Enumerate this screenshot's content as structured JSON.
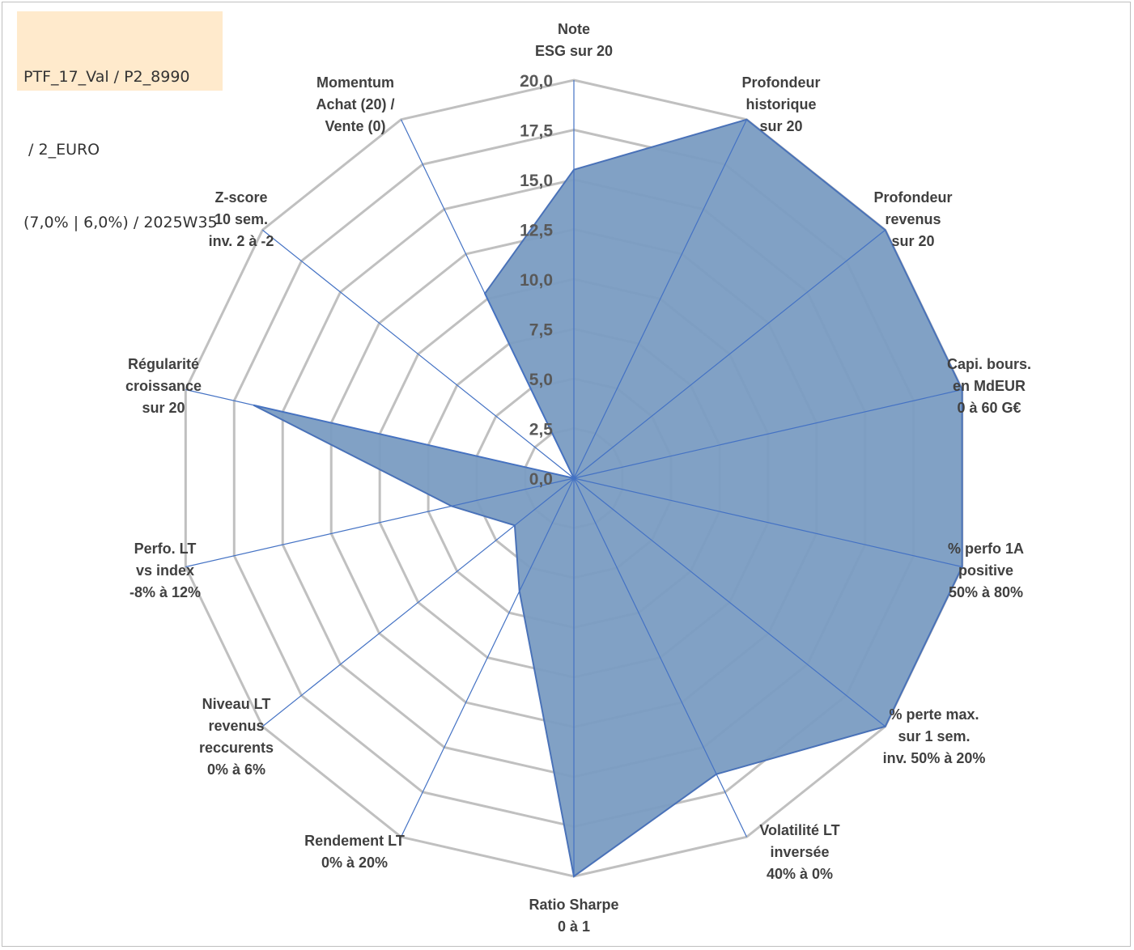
{
  "legend": {
    "lines": [
      "PTF_17_Val / P2_8990",
      " / 2_EURO",
      "(7,0% | 6,0%) / 2025W35"
    ]
  },
  "colors": {
    "grid": "#c0c0c0",
    "spoke": "#4472c4",
    "fill": "#7a9cc2",
    "stroke": "#4a72b8",
    "legend_bg": "#ffeacc"
  },
  "chart_data": {
    "type": "radar",
    "title": "",
    "rlim": [
      0,
      20
    ],
    "grid": true,
    "tick_labels": [
      "0,0",
      "2,5",
      "5,0",
      "7,5",
      "10,0",
      "12,5",
      "15,0",
      "17,5",
      "20,0"
    ],
    "categories": [
      [
        "Note",
        "ESG sur 20"
      ],
      [
        "Profondeur",
        "historique",
        "sur 20"
      ],
      [
        "Profondeur",
        "revenus",
        "sur 20"
      ],
      [
        "Capi. bours.",
        "en MdEUR",
        "0 à 60 G€"
      ],
      [
        "% perfo 1A",
        "positive",
        "50% à 80%"
      ],
      [
        "% perte max.",
        "sur 1 sem.",
        "inv. 50% à 20%"
      ],
      [
        "Volatilité LT",
        "inversée",
        "40% à 0%"
      ],
      [
        "Ratio Sharpe",
        "0 à 1"
      ],
      [
        "Rendement LT",
        "0% à 20%"
      ],
      [
        "Niveau LT",
        "revenus",
        "reccurents",
        "0% à 6%"
      ],
      [
        "Perfo. LT",
        "vs index",
        "-8% à 12%"
      ],
      [
        "Régularité",
        "croissance",
        "sur 20"
      ],
      [
        "Z-score",
        "10 sem.",
        "inv. 2 à -2"
      ],
      [
        "Momentum",
        "Achat (20) /",
        "Vente (0)"
      ]
    ],
    "series": [
      {
        "values": [
          15.5,
          20,
          20,
          20,
          20,
          20,
          16.5,
          20,
          6.3,
          3.8,
          6.3,
          16.5,
          0,
          10.3
        ]
      }
    ]
  }
}
